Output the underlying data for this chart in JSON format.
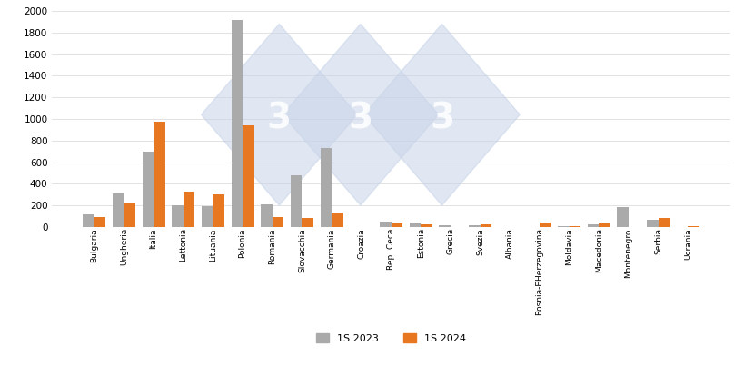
{
  "categories": [
    "Bulgaria",
    "Ungheria",
    "Italia",
    "Lettonia",
    "Lituania",
    "Polonia",
    "Romania",
    "Slovacchia",
    "Germania",
    "Croazia",
    "Rep. Ceca",
    "Estonia",
    "Grecia",
    "Svezia",
    "Albania",
    "Bosnia-EHerzegovina",
    "Moldavia",
    "Macedonia",
    "Montenegro",
    "Serbia",
    "Ucrania"
  ],
  "values_2023": [
    120,
    310,
    700,
    200,
    195,
    1920,
    210,
    475,
    730,
    0,
    50,
    40,
    15,
    15,
    0,
    0,
    5,
    25,
    185,
    65,
    0
  ],
  "values_2024": [
    90,
    215,
    975,
    325,
    300,
    940,
    95,
    80,
    130,
    0,
    30,
    20,
    0,
    20,
    0,
    40,
    5,
    35,
    0,
    80,
    10
  ],
  "color_2023": "#aaaaaa",
  "color_2024": "#E87722",
  "legend_2023": "1S 2023",
  "legend_2024": "1S 2024",
  "ylim": [
    0,
    2000
  ],
  "yticks": [
    0,
    200,
    400,
    600,
    800,
    1000,
    1200,
    1400,
    1600,
    1800,
    2000
  ],
  "background_color": "#ffffff",
  "grid_color": "#dddddd",
  "bar_width": 0.38,
  "figsize": [
    8.2,
    4.03
  ],
  "dpi": 100,
  "watermark_color": "#c8d4e8",
  "watermark_alpha": 0.55
}
